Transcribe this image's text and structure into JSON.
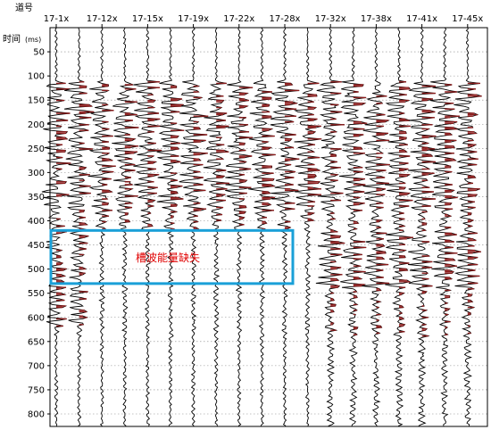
{
  "chart_data": {
    "type": "seismic-trace",
    "title": "",
    "xlabel": "道号",
    "ylabel": "时间",
    "ylabel_unit": "(ms)",
    "categories": [
      "17-1x",
      "17-12x",
      "17-15x",
      "17-19x",
      "17-22x",
      "17-28x",
      "17-32x",
      "17-38x",
      "17-41x",
      "17-45x"
    ],
    "y_ticks": [
      50,
      100,
      150,
      200,
      250,
      300,
      350,
      400,
      450,
      500,
      550,
      600,
      650,
      700,
      750,
      800
    ],
    "ylim": [
      0,
      820
    ],
    "y_inverted": true,
    "grid": true,
    "trace_count": 19,
    "annotation": {
      "text": "槽波能量缺失",
      "x_from": "17-1x",
      "x_to": "17-28x",
      "time_range_ms": [
        420,
        530
      ],
      "box_color": "#1aa0d8",
      "text_color": "#e00000"
    },
    "colors": {
      "wiggle": "#000000",
      "fill": "#8b1a1a",
      "grid": "#888888"
    }
  }
}
